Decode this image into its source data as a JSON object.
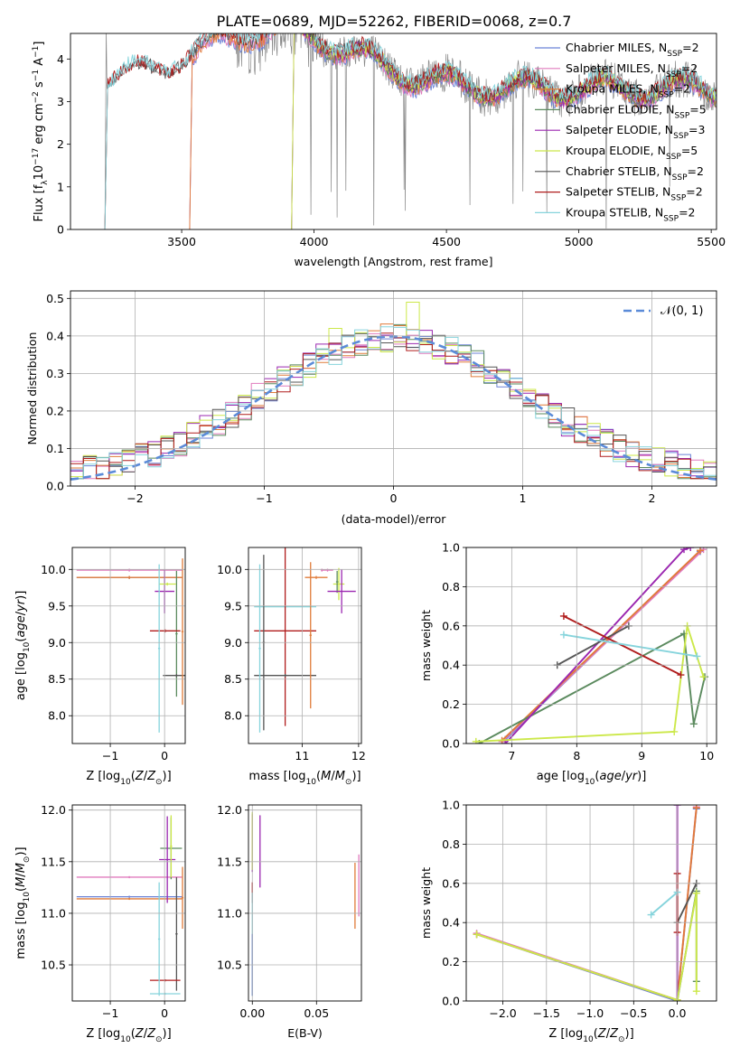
{
  "figure": {
    "title": "PLATE=0689, MJD=52262, FIBERID=0068, z=0.7",
    "colors": {
      "Chabrier MILES": "#6b82d6",
      "Salpeter MILES": "#e07bbd",
      "Kroupa MILES": "#e07b39",
      "Chabrier ELODIE": "#5b8a5e",
      "Salpeter ELODIE": "#9b27b0",
      "Kroupa ELODIE": "#cce84a",
      "Chabrier STELIB": "#555555",
      "Salpeter STELIB": "#b01c1c",
      "Kroupa STELIB": "#86d4dc",
      "gaussian": "#5b8bd8"
    }
  },
  "chart_data": [
    {
      "type": "line",
      "id": "spectrum",
      "xlabel": "wavelength [Angstrom, rest frame]",
      "ylabel": "Flux [fλ10⁻¹⁷ erg cm⁻² s⁻¹ A⁻¹]",
      "xlim": [
        3080,
        5520
      ],
      "ylim": [
        0,
        4.6
      ],
      "xticks": [
        "3500",
        "4000",
        "4500",
        "5000",
        "5500"
      ],
      "yticks": [
        "0",
        "1",
        "2",
        "3",
        "4"
      ],
      "grid": false,
      "legend_position": "right",
      "legend": [
        {
          "base": "Chabrier MILES, N",
          "sub": "SSP",
          "tail": "=2"
        },
        {
          "base": "Salpeter MILES, N",
          "sub": "SSP",
          "tail": "=2"
        },
        {
          "base": "Kroupa MILES, N",
          "sub": "SSP",
          "tail": "=2"
        },
        {
          "base": "Chabrier ELODIE, N",
          "sub": "SSP",
          "tail": "=5"
        },
        {
          "base": "Salpeter ELODIE, N",
          "sub": "SSP",
          "tail": "=3"
        },
        {
          "base": "Kroupa ELODIE, N",
          "sub": "SSP",
          "tail": "=5"
        },
        {
          "base": "Chabrier STELIB, N",
          "sub": "SSP",
          "tail": "=2"
        },
        {
          "base": "Salpeter STELIB, N",
          "sub": "SSP",
          "tail": "=2"
        },
        {
          "base": "Kroupa STELIB, N",
          "sub": "SSP",
          "tail": "=2"
        }
      ],
      "model_start": {
        "MILES": 3530,
        "ELODIE": 3915,
        "STELIB": 3210
      },
      "observed_start": 3210
    },
    {
      "type": "histogram",
      "id": "residuals",
      "xlabel": "(data-model)/error",
      "ylabel": "Normed distribution",
      "xlim": [
        -2.5,
        2.5
      ],
      "ylim": [
        0,
        0.52
      ],
      "xticks": [
        -2,
        -1,
        0,
        1,
        2
      ],
      "xtick_labels": [
        "−2",
        "−1",
        "0",
        "1",
        "2"
      ],
      "yticks": [
        "0.0",
        "0.1",
        "0.2",
        "0.3",
        "0.4",
        "0.5"
      ],
      "grid": true,
      "legend_position": "top-right",
      "gaussian_label": "𝒩(0, 1)",
      "bin_width": 0.1
    },
    {
      "type": "scatter",
      "id": "age-vs-Z",
      "xlabel": "Z [log₁₀(Z/Z⊙)]",
      "ylabel": "age  [log₁₀(age/yr)]",
      "xlim": [
        -1.7,
        0.38
      ],
      "ylim": [
        7.62,
        10.3
      ],
      "xticks": [
        -1,
        0
      ],
      "xtick_labels": [
        "−1",
        "0"
      ],
      "yticks": [
        8.0,
        8.5,
        9.0,
        9.5,
        10.0
      ],
      "ytick_labels": [
        "8.0",
        "8.5",
        "9.0",
        "9.5",
        "10.0"
      ],
      "grid": true,
      "points": [
        {
          "m": "Chabrier MILES",
          "x": -0.65,
          "y": 9.89,
          "xerr": 0.97,
          "yerr": 0.02
        },
        {
          "m": "Salpeter MILES",
          "x": -0.65,
          "y": 9.99,
          "xerr": 0.97,
          "yerr": 0.02
        },
        {
          "m": "Kroupa MILES",
          "x": -0.65,
          "y": 9.89,
          "xerr": 0.97,
          "yerr": 0.02
        },
        {
          "m": "Chabrier ELODIE",
          "x": 0.22,
          "y": 9.12,
          "xerr": 0.02,
          "yerr": 0.86
        },
        {
          "m": "Salpeter ELODIE",
          "x": 0.0,
          "y": 9.7,
          "xerr": 0.18,
          "yerr": 0.3
        },
        {
          "m": "Kroupa ELODIE",
          "x": 0.05,
          "y": 9.8,
          "xerr": 0.16,
          "yerr": 0.02
        },
        {
          "m": "Chabrier STELIB",
          "x": 0.22,
          "y": 8.55,
          "xerr": 0.25,
          "yerr": 0.02
        },
        {
          "m": "Salpeter STELIB",
          "x": 0.01,
          "y": 9.16,
          "xerr": 0.28,
          "yerr": 0.02
        },
        {
          "m": "Kroupa STELIB",
          "x": -0.1,
          "y": 8.92,
          "xerr": 0.02,
          "yerr": 1.15
        },
        {
          "m": "Kroupa MILES",
          "x": 0.33,
          "y": 9.15,
          "xerr": 0.02,
          "yerr": 1.0
        }
      ]
    },
    {
      "type": "scatter",
      "id": "age-vs-mass",
      "xlabel": "mass [log₁₀(M/M⊙)]",
      "ylabel": "",
      "xlim": [
        10.05,
        12.05
      ],
      "ylim": [
        7.62,
        10.3
      ],
      "xticks": [
        11,
        12
      ],
      "xtick_labels": [
        "11",
        "12"
      ],
      "yticks": [
        8.0,
        8.5,
        9.0,
        9.5,
        10.0
      ],
      "ytick_labels": [
        "8.0",
        "8.5",
        "9.0",
        "9.5",
        "10.0"
      ],
      "grid": true,
      "points": [
        {
          "m": "Salpeter MILES",
          "x": 11.35,
          "y": 9.99,
          "xerr": 0.02,
          "yerr": 0.02
        },
        {
          "m": "Salpeter MILES",
          "x": 11.45,
          "y": 9.99,
          "xerr": 0.1,
          "yerr": 0.02
        },
        {
          "m": "Kroupa MILES",
          "x": 11.25,
          "y": 9.89,
          "xerr": 0.2,
          "yerr": 0.02
        },
        {
          "m": "Kroupa ELODIE",
          "x": 11.65,
          "y": 9.8,
          "xerr": 0.1,
          "yerr": 0.22
        },
        {
          "m": "Chabrier ELODIE",
          "x": 11.62,
          "y": 9.83,
          "xerr": 0.02,
          "yerr": 0.15
        },
        {
          "m": "Salpeter ELODIE",
          "x": 11.7,
          "y": 9.7,
          "xerr": 0.25,
          "yerr": 0.3
        },
        {
          "m": "Kroupa STELIB",
          "x": 10.7,
          "y": 9.49,
          "xerr": 0.55,
          "yerr": 0.02
        },
        {
          "m": "Salpeter STELIB",
          "x": 10.7,
          "y": 9.16,
          "xerr": 0.55,
          "yerr": 1.3
        },
        {
          "m": "Chabrier STELIB",
          "x": 10.7,
          "y": 8.55,
          "xerr": 0.55,
          "yerr": 0.02
        },
        {
          "m": "Kroupa STELIB",
          "x": 10.25,
          "y": 8.92,
          "xerr": 0.02,
          "yerr": 1.15
        },
        {
          "m": "Chabrier STELIB",
          "x": 10.32,
          "y": 9.0,
          "xerr": 0.02,
          "yerr": 1.2
        },
        {
          "m": "Kroupa MILES",
          "x": 11.15,
          "y": 9.1,
          "xerr": 0.02,
          "yerr": 1.0
        }
      ]
    },
    {
      "type": "line",
      "id": "weight-vs-age",
      "xlabel": "age  [log₁₀(age/yr)]",
      "ylabel": "mass weight",
      "xlim": [
        6.3,
        10.15
      ],
      "ylim": [
        0,
        1.0
      ],
      "xticks": [
        7,
        8,
        9,
        10
      ],
      "xtick_labels": [
        "7",
        "8",
        "9",
        "10"
      ],
      "yticks": [
        0.0,
        0.2,
        0.4,
        0.6,
        0.8,
        1.0
      ],
      "ytick_labels": [
        "0.0",
        "0.2",
        "0.4",
        "0.6",
        "0.8",
        "1.0"
      ],
      "grid": true,
      "series": [
        {
          "m": "Chabrier MILES",
          "x": [
            6.9,
            9.9
          ],
          "y": [
            0.02,
            0.98
          ]
        },
        {
          "m": "Salpeter MILES",
          "x": [
            6.85,
            9.95
          ],
          "y": [
            0.01,
            0.99
          ]
        },
        {
          "m": "Kroupa MILES",
          "x": [
            6.85,
            9.9
          ],
          "y": [
            0.015,
            0.985
          ]
        },
        {
          "m": "Chabrier ELODIE",
          "x": [
            6.5,
            9.65,
            9.8,
            9.97
          ],
          "y": [
            0.0,
            0.56,
            0.1,
            0.34
          ]
        },
        {
          "m": "Salpeter ELODIE",
          "x": [
            6.9,
            9.65,
            9.75
          ],
          "y": [
            0.0,
            0.99,
            1.0
          ]
        },
        {
          "m": "Kroupa ELODIE",
          "x": [
            6.45,
            9.5,
            9.7,
            9.95
          ],
          "y": [
            0.01,
            0.06,
            0.6,
            0.34
          ]
        },
        {
          "m": "Chabrier STELIB",
          "x": [
            7.7,
            8.8
          ],
          "y": [
            0.4,
            0.6
          ]
        },
        {
          "m": "Salpeter STELIB",
          "x": [
            7.8,
            9.6
          ],
          "y": [
            0.65,
            0.35
          ]
        },
        {
          "m": "Kroupa STELIB",
          "x": [
            7.8,
            9.85
          ],
          "y": [
            0.555,
            0.445
          ]
        }
      ]
    },
    {
      "type": "scatter",
      "id": "mass-vs-Z",
      "xlabel": "Z [log₁₀(Z/Z⊙)]",
      "ylabel": "mass [log₁₀(M/M⊙)]",
      "xlim": [
        -1.7,
        0.38
      ],
      "ylim": [
        10.15,
        12.05
      ],
      "xticks": [
        -1,
        0
      ],
      "xtick_labels": [
        "−1",
        "0"
      ],
      "yticks": [
        10.5,
        11.0,
        11.5,
        12.0
      ],
      "ytick_labels": [
        "10.5",
        "11.0",
        "11.5",
        "12.0"
      ],
      "grid": true,
      "points": [
        {
          "m": "Chabrier MILES",
          "x": -0.65,
          "y": 11.16,
          "xerr": 0.97,
          "yerr": 0.01
        },
        {
          "m": "Salpeter MILES",
          "x": -0.65,
          "y": 11.35,
          "xerr": 0.97,
          "yerr": 0.01
        },
        {
          "m": "Kroupa MILES",
          "x": -0.65,
          "y": 11.14,
          "xerr": 0.97,
          "yerr": 0.01
        },
        {
          "m": "Kroupa MILES",
          "x": 0.33,
          "y": 11.15,
          "xerr": 0.02,
          "yerr": 0.3
        },
        {
          "m": "Chabrier ELODIE",
          "x": 0.12,
          "y": 11.63,
          "xerr": 0.2,
          "yerr": 0.3
        },
        {
          "m": "Salpeter ELODIE",
          "x": 0.05,
          "y": 11.52,
          "xerr": 0.15,
          "yerr": 0.42
        },
        {
          "m": "Kroupa ELODIE",
          "x": 0.12,
          "y": 11.65,
          "xerr": 0.02,
          "yerr": 0.3
        },
        {
          "m": "Chabrier STELIB",
          "x": 0.22,
          "y": 10.8,
          "xerr": 0.02,
          "yerr": 0.55
        },
        {
          "m": "Salpeter STELIB",
          "x": 0.01,
          "y": 10.35,
          "xerr": 0.28,
          "yerr": 0.01
        },
        {
          "m": "Kroupa STELIB",
          "x": -0.1,
          "y": 10.75,
          "xerr": 0.02,
          "yerr": 0.55
        },
        {
          "m": "Kroupa STELIB",
          "x": 0.01,
          "y": 10.22,
          "xerr": 0.28,
          "yerr": 0.01
        }
      ]
    },
    {
      "type": "scatter",
      "id": "mass-vs-ebv",
      "xlabel": "E(B-V)",
      "ylabel": "",
      "xlim": [
        -0.003,
        0.085
      ],
      "ylim": [
        10.15,
        12.05
      ],
      "xticks": [
        0.0,
        0.05
      ],
      "xtick_labels": [
        "0.00",
        "0.05"
      ],
      "yticks": [
        10.5,
        11.0,
        11.5,
        12.0
      ],
      "ytick_labels": [
        "10.5",
        "11.0",
        "11.5",
        "12.0"
      ],
      "grid": true,
      "points": [
        {
          "m": "Salpeter ELODIE",
          "x": 0.0,
          "y": 11.68,
          "xerr": 0.0,
          "yerr": 0.28
        },
        {
          "m": "Kroupa ELODIE",
          "x": 0.0,
          "y": 11.7,
          "xerr": 0.0,
          "yerr": 0.28
        },
        {
          "m": "Salpeter STELIB",
          "x": 0.0,
          "y": 11.2,
          "xerr": 0.0,
          "yerr": 0.1
        },
        {
          "m": "Kroupa STELIB",
          "x": 0.0,
          "y": 10.7,
          "xerr": 0.0,
          "yerr": 0.5
        },
        {
          "m": "Chabrier MILES",
          "x": 0.0,
          "y": 10.5,
          "xerr": 0.0,
          "yerr": 0.3
        },
        {
          "m": "Salpeter ELODIE",
          "x": 0.006,
          "y": 11.6,
          "xerr": 0.0,
          "yerr": 0.35
        },
        {
          "m": "Kroupa MILES",
          "x": 0.08,
          "y": 11.17,
          "xerr": 0.0,
          "yerr": 0.32
        },
        {
          "m": "Salpeter MILES",
          "x": 0.083,
          "y": 11.27,
          "xerr": 0.0,
          "yerr": 0.3
        }
      ]
    },
    {
      "type": "line",
      "id": "weight-vs-Z",
      "xlabel": "Z [log₁₀(Z/Z⊙)]",
      "ylabel": "mass weight",
      "xlim": [
        -2.42,
        0.45
      ],
      "ylim": [
        0,
        1.0
      ],
      "xticks": [
        -2.0,
        -1.5,
        -1.0,
        -0.5,
        0.0
      ],
      "xtick_labels": [
        "−2.0",
        "−1.5",
        "−1.0",
        "−0.5",
        "0.0"
      ],
      "yticks": [
        0.0,
        0.2,
        0.4,
        0.6,
        0.8,
        1.0
      ],
      "ytick_labels": [
        "0.0",
        "0.2",
        "0.4",
        "0.6",
        "0.8",
        "1.0"
      ],
      "grid": true,
      "series": [
        {
          "m": "Chabrier MILES",
          "x": [
            -2.3,
            0.0,
            0.22
          ],
          "y": [
            0.34,
            0.0,
            0.98
          ]
        },
        {
          "m": "Salpeter MILES",
          "x": [
            -2.3,
            0.0,
            0.22
          ],
          "y": [
            0.345,
            0.005,
            0.99
          ]
        },
        {
          "m": "Kroupa MILES",
          "x": [
            -2.3,
            0.0,
            0.22
          ],
          "y": [
            0.34,
            0.005,
            0.985
          ]
        },
        {
          "m": "Salpeter ELODIE",
          "x": [
            0.0,
            0.0
          ],
          "y": [
            0.0,
            1.0
          ]
        },
        {
          "m": "Chabrier ELODIE",
          "x": [
            0.0,
            0.22,
            0.22
          ],
          "y": [
            0.0,
            0.56,
            0.1
          ]
        },
        {
          "m": "Kroupa ELODIE",
          "x": [
            -2.3,
            0.0,
            0.22,
            0.22
          ],
          "y": [
            0.34,
            0.005,
            0.55,
            0.05
          ]
        },
        {
          "m": "Chabrier STELIB",
          "x": [
            0.0,
            0.22
          ],
          "y": [
            0.4,
            0.6
          ]
        },
        {
          "m": "Salpeter STELIB",
          "x": [
            0.0,
            0.0
          ],
          "y": [
            0.65,
            0.35
          ]
        },
        {
          "m": "Kroupa STELIB",
          "x": [
            -0.3,
            0.0
          ],
          "y": [
            0.44,
            0.555
          ]
        }
      ]
    }
  ]
}
